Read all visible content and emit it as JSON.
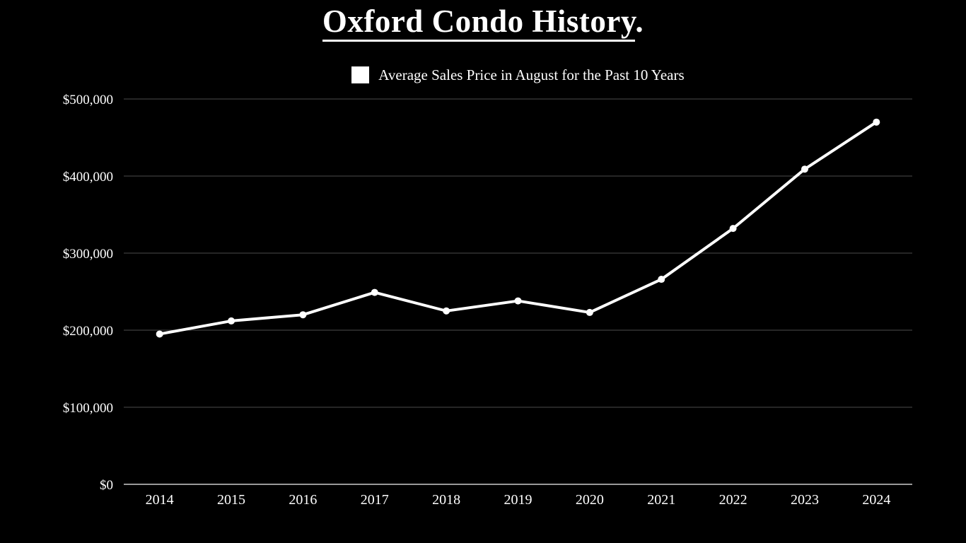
{
  "page": {
    "background_color": "#000000",
    "foreground_color": "#ffffff"
  },
  "chart": {
    "title": "Oxford Condo History",
    "title_suffix": ".",
    "legend_label": "Average Sales Price in August for the Past 10 Years"
  },
  "chart_data": {
    "type": "line",
    "title": "Oxford Condo History",
    "legend_position": "top",
    "legend_entries": [
      "Average Sales Price in August for the Past 10 Years"
    ],
    "categories": [
      "2014",
      "2015",
      "2016",
      "2017",
      "2018",
      "2019",
      "2020",
      "2021",
      "2022",
      "2023",
      "2024"
    ],
    "series": [
      {
        "name": "Average Sales Price in August for the Past 10 Years",
        "values": [
          195000,
          212000,
          220000,
          249000,
          225000,
          238000,
          223000,
          266000,
          332000,
          409000,
          470000
        ]
      }
    ],
    "xlabel": "",
    "ylabel": "",
    "ylim": [
      0,
      500000
    ],
    "ytick_step": 100000,
    "ytick_labels": [
      "$0",
      "$100,000",
      "$200,000",
      "$300,000",
      "$400,000",
      "$500,000"
    ],
    "grid": true,
    "marker": "circle",
    "line_color": "#ffffff",
    "marker_color": "#ffffff",
    "grid_color": "#4d4d4d",
    "axis_color": "#999999",
    "tick_label_color": "#ffffff"
  }
}
